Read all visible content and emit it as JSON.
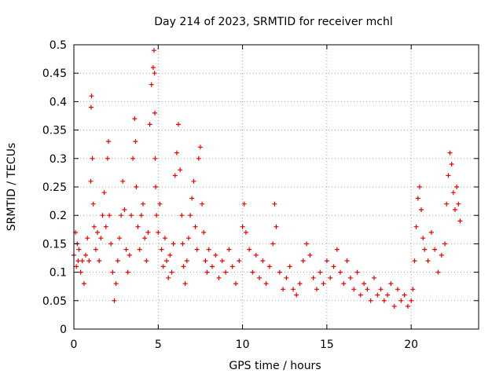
{
  "chart_data": {
    "type": "scatter",
    "title": "Day 214 of 2023, SRMTID for receiver mchl",
    "xlabel": "GPS time / hours",
    "ylabel": "SRMTID / TECUs",
    "xlim": [
      0,
      24
    ],
    "ylim": [
      0,
      0.5
    ],
    "x_ticks": [
      0,
      5,
      10,
      15,
      20
    ],
    "x_tick_labels": [
      "0",
      "5",
      "10",
      "15",
      "20"
    ],
    "y_ticks": [
      0,
      0.05,
      0.1,
      0.15,
      0.2,
      0.25,
      0.3,
      0.35,
      0.4,
      0.45,
      0.5
    ],
    "y_tick_labels": [
      "0",
      "0.05",
      "0.1",
      "0.15",
      "0.2",
      "0.25",
      "0.3",
      "0.35",
      "0.4",
      "0.45",
      "0.5"
    ],
    "grid": true,
    "marker": "+",
    "color": "#ee0000",
    "series": [
      {
        "name": "SRMTID",
        "x": [
          0.0,
          0.1,
          0.15,
          0.2,
          0.25,
          0.3,
          0.4,
          0.5,
          0.6,
          0.7,
          0.8,
          0.9,
          1.0,
          1.02,
          1.05,
          1.1,
          1.15,
          1.2,
          1.3,
          1.4,
          1.5,
          1.6,
          1.7,
          1.8,
          1.9,
          2.0,
          2.05,
          2.1,
          2.2,
          2.3,
          2.4,
          2.5,
          2.6,
          2.7,
          2.8,
          2.9,
          3.0,
          3.1,
          3.2,
          3.3,
          3.4,
          3.5,
          3.6,
          3.65,
          3.7,
          3.8,
          3.9,
          4.0,
          4.1,
          4.2,
          4.3,
          4.4,
          4.5,
          4.6,
          4.7,
          4.75,
          4.78,
          4.8,
          4.82,
          4.85,
          4.9,
          5.0,
          5.1,
          5.2,
          5.3,
          5.4,
          5.5,
          5.6,
          5.7,
          5.8,
          5.9,
          6.0,
          6.1,
          6.2,
          6.3,
          6.4,
          6.45,
          6.5,
          6.6,
          6.7,
          6.8,
          6.9,
          7.0,
          7.1,
          7.2,
          7.3,
          7.4,
          7.5,
          7.6,
          7.7,
          7.8,
          7.9,
          8.0,
          8.2,
          8.4,
          8.6,
          8.8,
          9.0,
          9.2,
          9.4,
          9.6,
          9.8,
          10.0,
          10.1,
          10.2,
          10.4,
          10.6,
          10.8,
          11.0,
          11.2,
          11.4,
          11.6,
          11.8,
          11.9,
          12.0,
          12.2,
          12.4,
          12.6,
          12.8,
          13.0,
          13.2,
          13.4,
          13.6,
          13.8,
          14.0,
          14.2,
          14.4,
          14.6,
          14.8,
          15.0,
          15.2,
          15.4,
          15.6,
          15.8,
          16.0,
          16.2,
          16.4,
          16.6,
          16.8,
          17.0,
          17.2,
          17.4,
          17.6,
          17.8,
          18.0,
          18.2,
          18.4,
          18.6,
          18.8,
          19.0,
          19.2,
          19.4,
          19.6,
          19.8,
          20.0,
          20.1,
          20.2,
          20.3,
          20.4,
          20.5,
          20.6,
          20.7,
          20.8,
          21.0,
          21.2,
          21.4,
          21.6,
          21.8,
          22.0,
          22.1,
          22.2,
          22.3,
          22.4,
          22.5,
          22.6,
          22.7,
          22.8,
          22.9
        ],
        "y": [
          0.13,
          0.17,
          0.11,
          0.15,
          0.12,
          0.14,
          0.1,
          0.12,
          0.08,
          0.13,
          0.16,
          0.12,
          0.26,
          0.39,
          0.41,
          0.3,
          0.22,
          0.18,
          0.14,
          0.17,
          0.12,
          0.16,
          0.2,
          0.24,
          0.18,
          0.3,
          0.33,
          0.2,
          0.15,
          0.1,
          0.05,
          0.08,
          0.12,
          0.16,
          0.2,
          0.26,
          0.21,
          0.14,
          0.1,
          0.13,
          0.2,
          0.3,
          0.37,
          0.33,
          0.25,
          0.18,
          0.14,
          0.2,
          0.22,
          0.16,
          0.12,
          0.17,
          0.36,
          0.43,
          0.46,
          0.49,
          0.45,
          0.38,
          0.3,
          0.25,
          0.2,
          0.17,
          0.22,
          0.14,
          0.11,
          0.16,
          0.12,
          0.09,
          0.13,
          0.1,
          0.15,
          0.27,
          0.31,
          0.36,
          0.28,
          0.2,
          0.15,
          0.11,
          0.08,
          0.12,
          0.16,
          0.2,
          0.23,
          0.26,
          0.18,
          0.14,
          0.3,
          0.32,
          0.22,
          0.17,
          0.12,
          0.1,
          0.14,
          0.11,
          0.13,
          0.09,
          0.12,
          0.1,
          0.14,
          0.11,
          0.08,
          0.12,
          0.18,
          0.22,
          0.17,
          0.14,
          0.1,
          0.13,
          0.09,
          0.12,
          0.08,
          0.11,
          0.15,
          0.22,
          0.18,
          0.1,
          0.07,
          0.09,
          0.11,
          0.07,
          0.06,
          0.08,
          0.12,
          0.15,
          0.13,
          0.09,
          0.07,
          0.1,
          0.08,
          0.12,
          0.09,
          0.11,
          0.14,
          0.1,
          0.08,
          0.12,
          0.09,
          0.07,
          0.1,
          0.06,
          0.08,
          0.07,
          0.05,
          0.09,
          0.06,
          0.07,
          0.05,
          0.06,
          0.08,
          0.04,
          0.07,
          0.05,
          0.06,
          0.04,
          0.05,
          0.07,
          0.12,
          0.18,
          0.23,
          0.25,
          0.21,
          0.16,
          0.14,
          0.12,
          0.17,
          0.14,
          0.1,
          0.13,
          0.15,
          0.22,
          0.27,
          0.31,
          0.29,
          0.24,
          0.21,
          0.25,
          0.22,
          0.19
        ]
      }
    ]
  }
}
